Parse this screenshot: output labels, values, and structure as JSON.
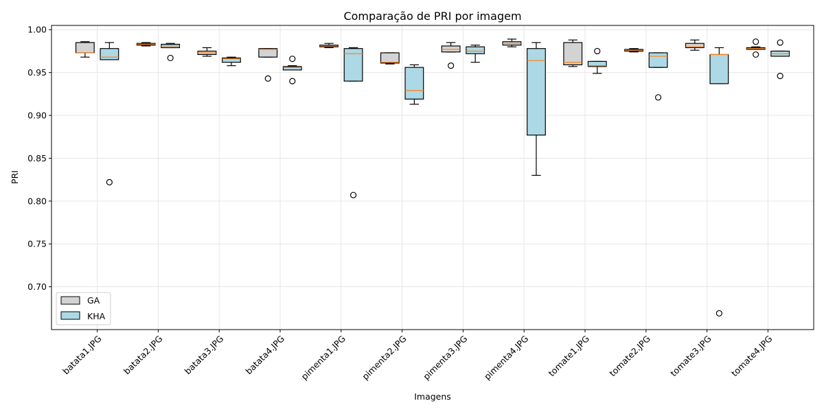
{
  "chart_data": {
    "type": "box",
    "title": "Comparação de PRI por imagem",
    "xlabel": "Imagens",
    "ylabel": "PRI",
    "ylim": [
      0.65,
      1.005
    ],
    "yticks": [
      0.7,
      0.75,
      0.8,
      0.85,
      0.9,
      0.95,
      1.0
    ],
    "ytick_labels": [
      "0.70",
      "0.75",
      "0.80",
      "0.85",
      "0.90",
      "0.95",
      "1.00"
    ],
    "grid": true,
    "legend_position": "lower-left",
    "categories": [
      "batata1.JPG",
      "batata2.JPG",
      "batata3.JPG",
      "batata4.JPG",
      "pimenta1.JPG",
      "pimenta2.JPG",
      "pimenta3.JPG",
      "pimenta4.JPG",
      "tomate1.JPG",
      "tomate2.JPG",
      "tomate3.JPG",
      "tomate4.JPG"
    ],
    "series": [
      {
        "name": "GA",
        "color": "#d3d3d3",
        "boxes": [
          {
            "whislo": 0.968,
            "q1": 0.973,
            "med": 0.973,
            "q3": 0.985,
            "whishi": 0.986,
            "fliers": []
          },
          {
            "whislo": 0.981,
            "q1": 0.982,
            "med": 0.983,
            "q3": 0.984,
            "whishi": 0.985,
            "fliers": []
          },
          {
            "whislo": 0.969,
            "q1": 0.971,
            "med": 0.973,
            "q3": 0.975,
            "whishi": 0.979,
            "fliers": []
          },
          {
            "whislo": 0.968,
            "q1": 0.968,
            "med": 0.977,
            "q3": 0.978,
            "whishi": 0.978,
            "fliers": [
              0.943
            ]
          },
          {
            "whislo": 0.979,
            "q1": 0.98,
            "med": 0.981,
            "q3": 0.982,
            "whishi": 0.984,
            "fliers": []
          },
          {
            "whislo": 0.96,
            "q1": 0.961,
            "med": 0.962,
            "q3": 0.973,
            "whishi": 0.973,
            "fliers": []
          },
          {
            "whislo": 0.974,
            "q1": 0.974,
            "med": 0.977,
            "q3": 0.981,
            "whishi": 0.985,
            "fliers": [
              0.958
            ]
          },
          {
            "whislo": 0.98,
            "q1": 0.982,
            "med": 0.984,
            "q3": 0.986,
            "whishi": 0.989,
            "fliers": []
          },
          {
            "whislo": 0.957,
            "q1": 0.959,
            "med": 0.962,
            "q3": 0.985,
            "whishi": 0.988,
            "fliers": []
          },
          {
            "whislo": 0.974,
            "q1": 0.975,
            "med": 0.976,
            "q3": 0.977,
            "whishi": 0.978,
            "fliers": []
          },
          {
            "whislo": 0.976,
            "q1": 0.979,
            "med": 0.98,
            "q3": 0.984,
            "whishi": 0.988,
            "fliers": []
          },
          {
            "whislo": 0.977,
            "q1": 0.977,
            "med": 0.978,
            "q3": 0.979,
            "whishi": 0.98,
            "fliers": [
              0.986,
              0.971
            ]
          }
        ]
      },
      {
        "name": "KHA",
        "color": "#add8e6",
        "boxes": [
          {
            "whislo": 0.965,
            "q1": 0.965,
            "med": 0.968,
            "q3": 0.978,
            "whishi": 0.985,
            "fliers": [
              0.822
            ]
          },
          {
            "whislo": 0.979,
            "q1": 0.979,
            "med": 0.981,
            "q3": 0.983,
            "whishi": 0.984,
            "fliers": [
              0.967
            ]
          },
          {
            "whislo": 0.958,
            "q1": 0.962,
            "med": 0.966,
            "q3": 0.967,
            "whishi": 0.968,
            "fliers": []
          },
          {
            "whislo": 0.953,
            "q1": 0.953,
            "med": 0.956,
            "q3": 0.957,
            "whishi": 0.958,
            "fliers": [
              0.966,
              0.94
            ]
          },
          {
            "whislo": 0.94,
            "q1": 0.94,
            "med": 0.972,
            "q3": 0.978,
            "whishi": 0.979,
            "fliers": [
              0.807
            ]
          },
          {
            "whislo": 0.913,
            "q1": 0.919,
            "med": 0.929,
            "q3": 0.956,
            "whishi": 0.959,
            "fliers": []
          },
          {
            "whislo": 0.962,
            "q1": 0.972,
            "med": 0.975,
            "q3": 0.98,
            "whishi": 0.982,
            "fliers": []
          },
          {
            "whislo": 0.83,
            "q1": 0.877,
            "med": 0.964,
            "q3": 0.978,
            "whishi": 0.985,
            "fliers": []
          },
          {
            "whislo": 0.949,
            "q1": 0.957,
            "med": 0.958,
            "q3": 0.963,
            "whishi": 0.963,
            "fliers": [
              0.975
            ]
          },
          {
            "whislo": 0.956,
            "q1": 0.956,
            "med": 0.969,
            "q3": 0.973,
            "whishi": 0.973,
            "fliers": [
              0.921
            ]
          },
          {
            "whislo": 0.937,
            "q1": 0.937,
            "med": 0.971,
            "q3": 0.971,
            "whishi": 0.979,
            "fliers": [
              0.669
            ]
          },
          {
            "whislo": 0.969,
            "q1": 0.969,
            "med": 0.972,
            "q3": 0.975,
            "whishi": 0.975,
            "fliers": [
              0.985,
              0.946
            ]
          }
        ]
      }
    ]
  }
}
